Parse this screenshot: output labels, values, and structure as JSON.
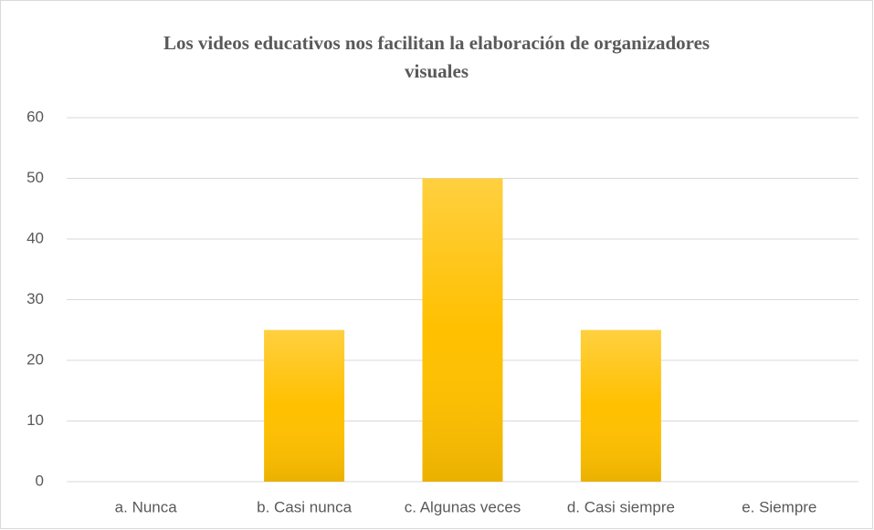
{
  "chart_data": {
    "type": "bar",
    "title": "Los videos educativos nos facilitan la elaboración de organizadores visuales",
    "categories": [
      "a. Nunca",
      "b. Casi nunca",
      "c. Algunas veces",
      "d. Casi siempre",
      "e. Siempre"
    ],
    "values": [
      0,
      25,
      50,
      25,
      0
    ],
    "color": "#ffc000",
    "ylim": [
      0,
      60
    ],
    "yticks": [
      0,
      10,
      20,
      30,
      40,
      50,
      60
    ],
    "grid": true
  }
}
